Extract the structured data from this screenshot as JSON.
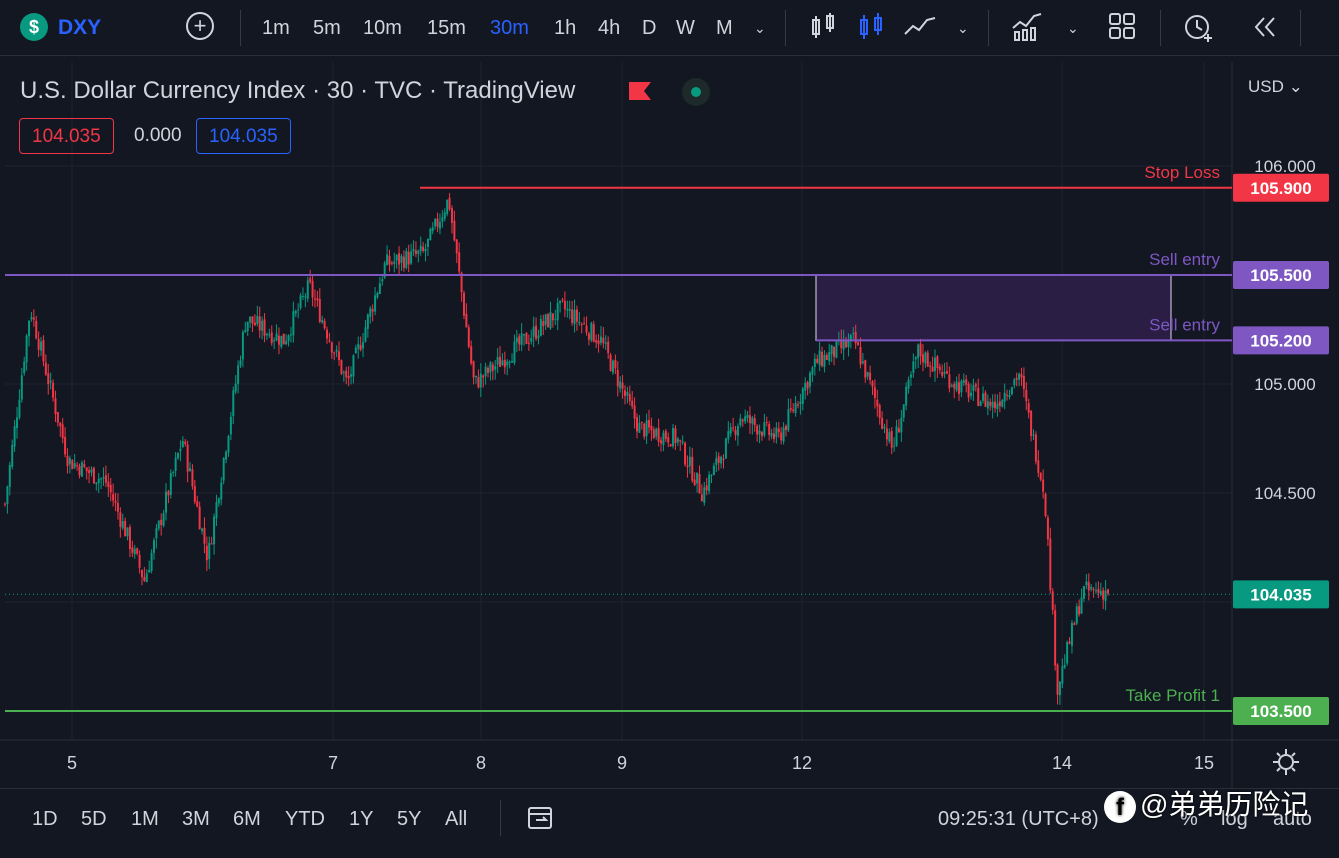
{
  "toolbar": {
    "symbol_badge": "$",
    "symbol": "DXY",
    "intervals": [
      "1m",
      "5m",
      "10m",
      "15m",
      "30m",
      "1h",
      "4h",
      "D",
      "W",
      "M"
    ],
    "active_interval": "30m"
  },
  "legend": {
    "title": "U.S. Dollar Currency Index · 30 · TVC · TradingView",
    "bid": "104.035",
    "spread": "0.000",
    "ask": "104.035"
  },
  "currency": "USD",
  "colors": {
    "up": "#089981",
    "down": "#f23645",
    "stop_loss": "#f23645",
    "sell_entry": "#7e57c2",
    "take_profit": "#4caf50",
    "accent": "#2962ff",
    "background": "#131722"
  },
  "chart_data": {
    "type": "candlestick",
    "title": "U.S. Dollar Currency Index · 30 · TVC · TradingView",
    "y_ticks": [
      "106.000",
      "105.000",
      "104.500"
    ],
    "ylim": [
      103.35,
      106.08
    ],
    "x_ticks": [
      "5",
      "7",
      "8",
      "9",
      "12",
      "14",
      "15"
    ],
    "last_price": "104.035",
    "grid": true,
    "levels": [
      {
        "name": "Stop Loss",
        "value": 105.9,
        "label": "105.900",
        "color": "#f23645"
      },
      {
        "name": "Sell entry",
        "value": 105.5,
        "label": "105.500",
        "color": "#7e57c2"
      },
      {
        "name": "Sell entry",
        "value": 105.2,
        "label": "105.200",
        "color": "#7e57c2"
      },
      {
        "name": "Take Profit 1",
        "value": 103.5,
        "label": "103.500",
        "color": "#4caf50"
      }
    ],
    "zone": {
      "from": 105.2,
      "to": 105.5
    },
    "price_path": [
      [
        0,
        104.45
      ],
      [
        0.02,
        105.35
      ],
      [
        0.05,
        104.65
      ],
      [
        0.08,
        104.55
      ],
      [
        0.11,
        104.1
      ],
      [
        0.14,
        104.75
      ],
      [
        0.16,
        104.2
      ],
      [
        0.19,
        105.3
      ],
      [
        0.22,
        105.2
      ],
      [
        0.24,
        105.45
      ],
      [
        0.27,
        105.0
      ],
      [
        0.3,
        105.55
      ],
      [
        0.33,
        105.6
      ],
      [
        0.35,
        105.85
      ],
      [
        0.37,
        105.0
      ],
      [
        0.4,
        105.15
      ],
      [
        0.44,
        105.35
      ],
      [
        0.47,
        105.2
      ],
      [
        0.5,
        104.8
      ],
      [
        0.53,
        104.75
      ],
      [
        0.55,
        104.5
      ],
      [
        0.58,
        104.85
      ],
      [
        0.61,
        104.75
      ],
      [
        0.64,
        105.1
      ],
      [
        0.67,
        105.2
      ],
      [
        0.7,
        104.7
      ],
      [
        0.72,
        105.15
      ],
      [
        0.75,
        105.0
      ],
      [
        0.78,
        104.9
      ],
      [
        0.8,
        105.05
      ],
      [
        0.82,
        104.5
      ],
      [
        0.83,
        103.6
      ],
      [
        0.85,
        104.05
      ],
      [
        0.87,
        104.05
      ]
    ]
  },
  "bottom": {
    "ranges": [
      "1D",
      "5D",
      "1M",
      "3M",
      "6M",
      "YTD",
      "1Y",
      "5Y",
      "All"
    ],
    "time": "09:25:31 (UTC+8)",
    "percent": "%",
    "log": "log",
    "auto": "auto"
  },
  "watermark": {
    "icon": "f",
    "text": "@弟弟历险记"
  }
}
